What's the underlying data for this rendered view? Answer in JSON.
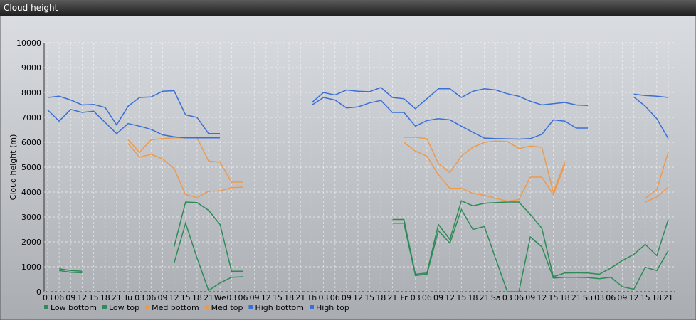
{
  "window_title": "Cloud height",
  "chart_data": {
    "type": "line",
    "ylabel": "Cloud height (m)",
    "categories": [
      "03",
      "06",
      "09",
      "12",
      "15",
      "18",
      "21",
      "Tu",
      "03",
      "06",
      "09",
      "12",
      "15",
      "18",
      "21",
      "We",
      "03",
      "06",
      "09",
      "12",
      "15",
      "18",
      "21",
      "Th",
      "03",
      "06",
      "09",
      "12",
      "15",
      "18",
      "21",
      "Fr",
      "03",
      "06",
      "09",
      "12",
      "15",
      "18",
      "21",
      "Sa",
      "03",
      "06",
      "09",
      "12",
      "15",
      "18",
      "21",
      "Su",
      "03",
      "06",
      "09",
      "12",
      "15",
      "18",
      "21"
    ],
    "ylim": [
      0,
      10000
    ],
    "yticks": [
      0,
      1000,
      2000,
      3000,
      4000,
      5000,
      6000,
      7000,
      8000,
      9000,
      10000
    ],
    "grid": true,
    "legend": "bottom",
    "series": [
      {
        "name": "Low bottom",
        "color": "#2e8b57",
        "values": [
          null,
          850,
          780,
          760,
          null,
          null,
          null,
          null,
          null,
          null,
          null,
          1150,
          2750,
          1350,
          50,
          350,
          580,
          600,
          null,
          null,
          null,
          null,
          null,
          null,
          null,
          null,
          null,
          null,
          null,
          null,
          2750,
          2750,
          650,
          700,
          2450,
          1950,
          3300,
          2500,
          2620,
          1300,
          0,
          0,
          2200,
          1800,
          550,
          580,
          580,
          570,
          520,
          580,
          200,
          100,
          980,
          850,
          1650
        ]
      },
      {
        "name": "Low top",
        "color": "#2e8b57",
        "values": [
          null,
          920,
          850,
          820,
          null,
          null,
          null,
          null,
          null,
          null,
          null,
          1800,
          3600,
          3580,
          3270,
          2700,
          820,
          820,
          null,
          null,
          null,
          null,
          null,
          null,
          null,
          null,
          null,
          null,
          null,
          null,
          2900,
          2900,
          700,
          750,
          2700,
          2100,
          3650,
          3450,
          3550,
          3580,
          3600,
          3600,
          3100,
          2550,
          600,
          750,
          760,
          750,
          700,
          950,
          1250,
          1500,
          1900,
          1450,
          2900
        ]
      },
      {
        "name": "Med bottom",
        "color": "#ee9a4d",
        "values": [
          null,
          null,
          null,
          null,
          null,
          null,
          null,
          5950,
          5400,
          5520,
          5330,
          4950,
          3900,
          3780,
          4030,
          4050,
          4180,
          4200,
          null,
          null,
          null,
          null,
          null,
          null,
          null,
          null,
          null,
          null,
          null,
          null,
          null,
          6000,
          5650,
          5450,
          4700,
          4150,
          4150,
          3950,
          3870,
          3750,
          3630,
          3700,
          4600,
          4600,
          3900,
          5100,
          null,
          null,
          null,
          null,
          null,
          null,
          3600,
          3800,
          4200
        ]
      },
      {
        "name": "Med top",
        "color": "#ee9a4d",
        "values": [
          null,
          null,
          null,
          null,
          null,
          null,
          null,
          6100,
          5600,
          6100,
          6150,
          6180,
          6180,
          6180,
          5250,
          5200,
          4400,
          4400,
          null,
          null,
          null,
          null,
          null,
          null,
          null,
          null,
          null,
          null,
          null,
          null,
          null,
          6200,
          6200,
          6150,
          5150,
          4780,
          5450,
          5800,
          6000,
          6050,
          6030,
          5750,
          5850,
          5800,
          4000,
          5200,
          null,
          null,
          null,
          null,
          null,
          null,
          3750,
          4100,
          5600
        ]
      },
      {
        "name": "High bottom",
        "color": "#3a6fd8",
        "values": [
          7300,
          6850,
          7320,
          7200,
          7250,
          6800,
          6350,
          6750,
          6650,
          6520,
          6300,
          6220,
          6180,
          6180,
          6180,
          6180,
          null,
          null,
          null,
          null,
          null,
          null,
          null,
          7500,
          7800,
          7700,
          7380,
          7420,
          7580,
          7680,
          7200,
          7200,
          6650,
          6870,
          6950,
          6900,
          6650,
          6400,
          6170,
          6150,
          6140,
          6130,
          6150,
          6320,
          6900,
          6850,
          6570,
          6570,
          null,
          null,
          null,
          7820,
          7450,
          6950,
          6150
        ]
      },
      {
        "name": "High top",
        "color": "#3a6fd8",
        "values": [
          7800,
          7850,
          7700,
          7500,
          7520,
          7400,
          6700,
          7450,
          7800,
          7820,
          8050,
          8070,
          7100,
          7000,
          6350,
          6350,
          null,
          null,
          null,
          null,
          null,
          null,
          null,
          7600,
          8000,
          7900,
          8100,
          8050,
          8030,
          8200,
          7800,
          7750,
          7350,
          7750,
          8150,
          8150,
          7800,
          8050,
          8150,
          8100,
          7950,
          7850,
          7650,
          7500,
          7550,
          7600,
          7500,
          7480,
          null,
          null,
          null,
          7930,
          7880,
          7850,
          7800
        ]
      }
    ]
  }
}
